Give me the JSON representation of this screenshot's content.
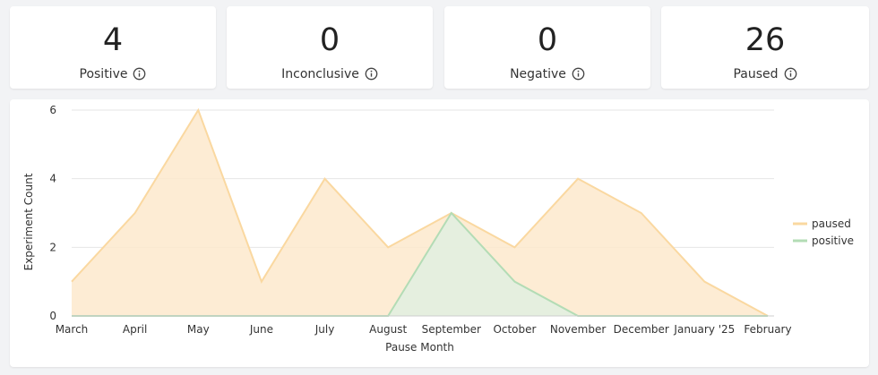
{
  "stats": [
    {
      "value": "4",
      "label": "Positive"
    },
    {
      "value": "0",
      "label": "Inconclusive"
    },
    {
      "value": "0",
      "label": "Negative"
    },
    {
      "value": "26",
      "label": "Paused"
    }
  ],
  "colors": {
    "paused_fill": "#fde9cc",
    "paused_line": "#fad8a0",
    "positive_fill": "#e0f0e0",
    "positive_line": "#b3dcb5",
    "grid": "#e6e6e6",
    "axis": "#cccccc"
  },
  "chart_data": {
    "type": "area",
    "xlabel": "Pause Month",
    "ylabel": "Experiment Count",
    "categories": [
      "March",
      "April",
      "May",
      "June",
      "July",
      "August",
      "September",
      "October",
      "November",
      "December",
      "January '25",
      "February"
    ],
    "ylim": [
      0,
      6
    ],
    "yticks": [
      0,
      2,
      4,
      6
    ],
    "grid": true,
    "legend_position": "right",
    "series": [
      {
        "name": "paused",
        "values": [
          1,
          3,
          6,
          1,
          4,
          2,
          3,
          2,
          4,
          3,
          1,
          0
        ]
      },
      {
        "name": "positive",
        "values": [
          0,
          0,
          0,
          0,
          0,
          0,
          3,
          1,
          0,
          0,
          0,
          0
        ]
      }
    ]
  }
}
